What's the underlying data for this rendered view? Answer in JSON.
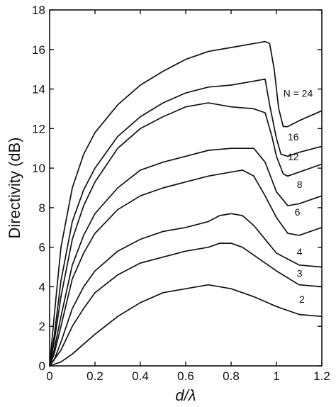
{
  "chart_data": {
    "type": "line",
    "xlabel": "d/λ",
    "ylabel": "Directivity (dB)",
    "xlim": [
      0,
      1.2
    ],
    "ylim": [
      0,
      18
    ],
    "xticks": [
      "0",
      "0.2",
      "0.4",
      "0.6",
      "0.8",
      "1",
      "1.2"
    ],
    "yticks": [
      "0",
      "2",
      "4",
      "6",
      "8",
      "10",
      "12",
      "14",
      "16",
      "18"
    ],
    "grid": false,
    "legend": "inline labels at right end of curves",
    "series": [
      {
        "name": "N = 24",
        "x": [
          0,
          0.02,
          0.05,
          0.1,
          0.15,
          0.2,
          0.3,
          0.4,
          0.5,
          0.6,
          0.7,
          0.8,
          0.9,
          0.95,
          0.97,
          0.99,
          1.01,
          1.03,
          1.05,
          1.1,
          1.2
        ],
        "y": [
          0,
          2.5,
          6.0,
          9.0,
          10.7,
          11.8,
          13.2,
          14.2,
          14.9,
          15.5,
          15.9,
          16.1,
          16.3,
          16.4,
          16.3,
          15.0,
          13.0,
          12.1,
          12.1,
          12.4,
          12.9
        ]
      },
      {
        "name": "16",
        "x": [
          0,
          0.02,
          0.05,
          0.1,
          0.15,
          0.2,
          0.3,
          0.4,
          0.5,
          0.6,
          0.7,
          0.8,
          0.9,
          0.95,
          0.97,
          1.0,
          1.02,
          1.05,
          1.1,
          1.2
        ],
        "y": [
          0,
          1.5,
          4.3,
          7.3,
          8.9,
          10.0,
          11.6,
          12.6,
          13.3,
          13.8,
          14.1,
          14.2,
          14.4,
          14.5,
          13.2,
          11.5,
          10.7,
          10.6,
          10.8,
          11.1
        ]
      },
      {
        "name": "12",
        "x": [
          0,
          0.02,
          0.05,
          0.1,
          0.15,
          0.2,
          0.3,
          0.4,
          0.5,
          0.6,
          0.7,
          0.8,
          0.9,
          0.95,
          0.98,
          1.0,
          1.03,
          1.05,
          1.1,
          1.2
        ],
        "y": [
          0,
          1.2,
          3.5,
          6.4,
          8.1,
          9.3,
          11.0,
          12.0,
          12.6,
          13.1,
          13.3,
          13.1,
          13.0,
          12.8,
          11.6,
          10.6,
          9.7,
          9.6,
          9.8,
          10.2
        ]
      },
      {
        "name": "8",
        "x": [
          0,
          0.02,
          0.05,
          0.1,
          0.15,
          0.2,
          0.3,
          0.4,
          0.5,
          0.6,
          0.7,
          0.8,
          0.9,
          0.95,
          1.0,
          1.05,
          1.1,
          1.2
        ],
        "y": [
          0,
          0.8,
          2.5,
          5.1,
          6.6,
          7.7,
          9.0,
          9.9,
          10.3,
          10.6,
          10.9,
          11.0,
          11.0,
          10.3,
          8.8,
          8.1,
          8.2,
          8.6
        ]
      },
      {
        "name": "6",
        "x": [
          0,
          0.02,
          0.05,
          0.1,
          0.15,
          0.2,
          0.3,
          0.4,
          0.5,
          0.6,
          0.7,
          0.8,
          0.85,
          0.9,
          0.95,
          1.0,
          1.05,
          1.1,
          1.2
        ],
        "y": [
          0,
          0.6,
          2.0,
          4.4,
          5.7,
          6.7,
          7.9,
          8.6,
          9.0,
          9.3,
          9.6,
          9.8,
          9.9,
          9.6,
          8.6,
          7.5,
          6.7,
          6.6,
          7.0
        ]
      },
      {
        "name": "4",
        "x": [
          0,
          0.02,
          0.05,
          0.1,
          0.15,
          0.2,
          0.3,
          0.4,
          0.5,
          0.6,
          0.7,
          0.75,
          0.8,
          0.85,
          0.9,
          1.0,
          1.1,
          1.2
        ],
        "y": [
          0,
          0.3,
          1.2,
          2.9,
          4.0,
          4.8,
          5.8,
          6.4,
          6.8,
          7.0,
          7.3,
          7.6,
          7.7,
          7.6,
          7.1,
          5.7,
          5.1,
          5.0
        ]
      },
      {
        "name": "3",
        "x": [
          0,
          0.05,
          0.1,
          0.15,
          0.2,
          0.3,
          0.4,
          0.5,
          0.6,
          0.7,
          0.75,
          0.8,
          0.85,
          0.9,
          1.0,
          1.1,
          1.2
        ],
        "y": [
          0,
          0.8,
          2.0,
          2.9,
          3.7,
          4.6,
          5.2,
          5.5,
          5.8,
          6.0,
          6.2,
          6.2,
          6.0,
          5.6,
          4.8,
          4.1,
          4.0
        ]
      },
      {
        "name": "2",
        "x": [
          0,
          0.05,
          0.1,
          0.15,
          0.2,
          0.3,
          0.4,
          0.5,
          0.6,
          0.7,
          0.8,
          0.9,
          1.0,
          1.1,
          1.2
        ],
        "y": [
          0,
          0.2,
          0.6,
          1.1,
          1.6,
          2.5,
          3.2,
          3.7,
          3.9,
          4.1,
          3.9,
          3.5,
          3.0,
          2.6,
          2.5
        ]
      }
    ]
  }
}
